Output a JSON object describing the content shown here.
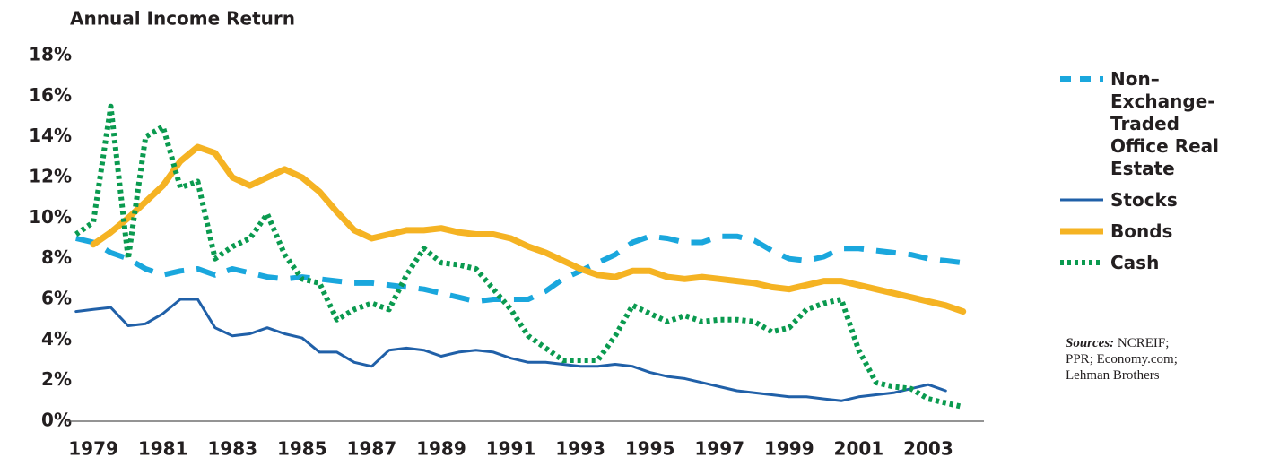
{
  "chart_data": {
    "type": "line",
    "title": "Annual Income Return",
    "x": [
      1978.5,
      1979,
      1979.5,
      1980,
      1980.5,
      1981,
      1981.5,
      1982,
      1982.5,
      1983,
      1983.5,
      1984,
      1984.5,
      1985,
      1985.5,
      1986,
      1986.5,
      1987,
      1987.5,
      1988,
      1988.5,
      1989,
      1989.5,
      1990,
      1990.5,
      1991,
      1991.5,
      1992,
      1992.5,
      1993,
      1993.5,
      1994,
      1994.5,
      1995,
      1995.5,
      1996,
      1996.5,
      1997,
      1997.5,
      1998,
      1998.5,
      1999,
      1999.5,
      2000,
      2000.5,
      2001,
      2001.5,
      2002,
      2002.5,
      2003,
      2003.5,
      2004,
      2004.5
    ],
    "xlim": [
      1978.25,
      2004.6
    ],
    "xticks": [
      1979,
      1981,
      1983,
      1985,
      1987,
      1989,
      1991,
      1993,
      1995,
      1997,
      1999,
      2001,
      2003
    ],
    "ylim": [
      0,
      18
    ],
    "yticks": [
      {
        "value": 0,
        "label": "0%"
      },
      {
        "value": 2,
        "label": "2%"
      },
      {
        "value": 4,
        "label": "4%"
      },
      {
        "value": 6,
        "label": "6%"
      },
      {
        "value": 8,
        "label": "8%"
      },
      {
        "value": 10,
        "label": "10%"
      },
      {
        "value": 12,
        "label": "12%"
      },
      {
        "value": 14,
        "label": "14%"
      },
      {
        "value": 16,
        "label": "16%"
      },
      {
        "value": 18,
        "label": "18%"
      }
    ],
    "grid": false,
    "legend": "right",
    "series": [
      {
        "name": "Non–Exchange-Traded Office Real Estate",
        "color": "#1aa7dd",
        "style": "dashed",
        "values": [
          9.0,
          8.8,
          8.3,
          8.0,
          7.5,
          7.2,
          7.4,
          7.5,
          7.2,
          7.5,
          7.3,
          7.1,
          7.0,
          7.1,
          7.0,
          6.9,
          6.8,
          6.8,
          6.7,
          6.6,
          6.5,
          6.3,
          6.1,
          5.9,
          6.0,
          6.0,
          6.0,
          6.4,
          7.0,
          7.4,
          7.8,
          8.2,
          8.8,
          9.1,
          9.0,
          8.8,
          8.8,
          9.1,
          9.1,
          8.9,
          8.4,
          8.0,
          7.9,
          8.1,
          8.5,
          8.5,
          8.4,
          8.3,
          8.2,
          8.0,
          7.9,
          7.8,
          null
        ]
      },
      {
        "name": "Stocks",
        "color": "#2060a8",
        "style": "solid",
        "values": [
          5.4,
          5.5,
          5.6,
          4.7,
          4.8,
          5.3,
          6.0,
          6.0,
          4.6,
          4.2,
          4.3,
          4.6,
          4.3,
          4.1,
          3.4,
          3.4,
          2.9,
          2.7,
          3.5,
          3.6,
          3.5,
          3.2,
          3.4,
          3.5,
          3.4,
          3.1,
          2.9,
          2.9,
          2.8,
          2.7,
          2.7,
          2.8,
          2.7,
          2.4,
          2.2,
          2.1,
          1.9,
          1.7,
          1.5,
          1.4,
          1.3,
          1.2,
          1.2,
          1.1,
          1.0,
          1.2,
          1.3,
          1.4,
          1.6,
          1.8,
          1.5,
          null,
          null
        ]
      },
      {
        "name": "Bonds",
        "color": "#f5b323",
        "style": "thick",
        "values": [
          null,
          8.7,
          9.3,
          10.0,
          10.8,
          11.6,
          12.8,
          13.5,
          13.2,
          12.0,
          11.6,
          12.0,
          12.4,
          12.0,
          11.3,
          10.3,
          9.4,
          9.0,
          9.2,
          9.4,
          9.4,
          9.5,
          9.3,
          9.2,
          9.2,
          9.0,
          8.6,
          8.3,
          7.9,
          7.5,
          7.2,
          7.1,
          7.4,
          7.4,
          7.1,
          7.0,
          7.1,
          7.0,
          6.9,
          6.8,
          6.6,
          6.5,
          6.7,
          6.9,
          6.9,
          6.7,
          6.5,
          6.3,
          6.1,
          5.9,
          5.7,
          5.4,
          null
        ]
      },
      {
        "name": "Cash",
        "color": "#0a9a4f",
        "style": "dotted",
        "values": [
          9.2,
          9.8,
          15.5,
          8.0,
          14.0,
          14.5,
          11.5,
          11.8,
          8.0,
          8.6,
          9.0,
          10.2,
          8.2,
          7.0,
          6.8,
          5.0,
          5.5,
          5.8,
          5.5,
          7.2,
          8.5,
          7.8,
          7.7,
          7.5,
          6.5,
          5.5,
          4.2,
          3.6,
          3.0,
          3.0,
          3.0,
          4.2,
          5.7,
          5.3,
          4.9,
          5.2,
          4.9,
          5.0,
          5.0,
          4.9,
          4.4,
          4.6,
          5.5,
          5.8,
          6.0,
          3.5,
          1.9,
          1.7,
          1.6,
          1.1,
          0.9,
          0.7,
          null
        ]
      }
    ],
    "source_label": "Sources:",
    "source": "NCREIF; PPR; Economy.com; Lehman Brothers"
  }
}
